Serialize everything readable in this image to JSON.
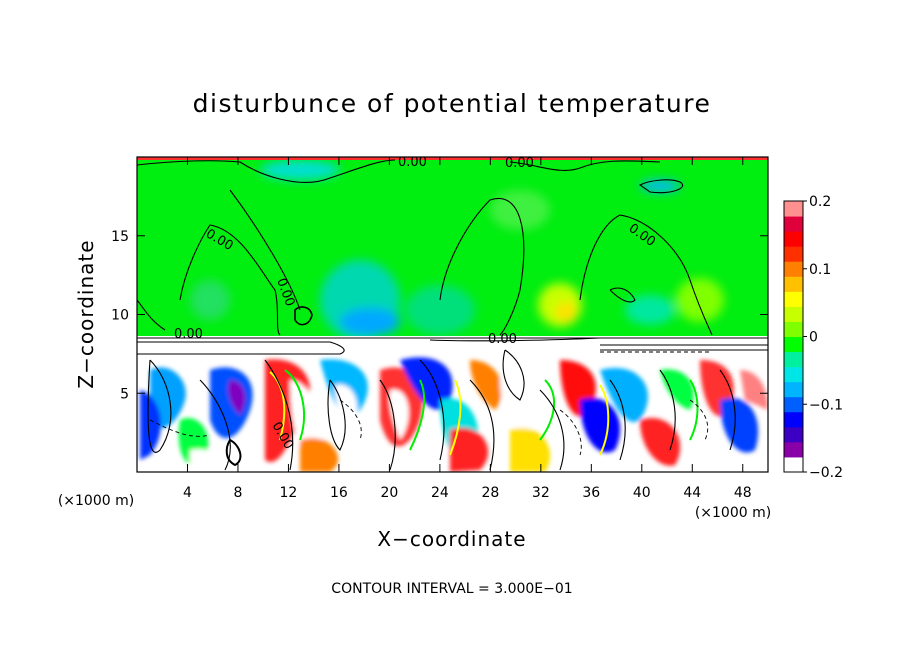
{
  "chart_data": {
    "type": "heatmap",
    "title": "disturbunce of potential temperature",
    "xlabel": "X−coordinate",
    "ylabel": "Z−coordinate",
    "x_unit": "(×1000 m)",
    "z_unit": "(×1000 m)",
    "xlim": [
      0,
      50
    ],
    "ylim": [
      0,
      20
    ],
    "x_ticks": [
      4,
      8,
      12,
      16,
      20,
      24,
      28,
      32,
      36,
      40,
      44,
      48
    ],
    "y_ticks": [
      5,
      10,
      15
    ],
    "colorbar": {
      "range": [
        -0.2,
        0.2
      ],
      "tick_values": [
        0.2,
        0.1,
        0,
        -0.1,
        -0.2
      ],
      "tick_labels": [
        "0.2",
        "0.1",
        "0",
        "−0.1",
        "−0.2"
      ],
      "colors": [
        "#ffffff",
        "#8a00a8",
        "#3b00c4",
        "#0000ff",
        "#0060ff",
        "#00b4ff",
        "#00e6e6",
        "#00f0a0",
        "#00ff00",
        "#80ff00",
        "#c8ff00",
        "#ffff00",
        "#ffc000",
        "#ff8000",
        "#ff3000",
        "#ff0000",
        "#e0003c",
        "#ff9090"
      ]
    },
    "contour_labels": [
      "0.00",
      "0.00",
      "0.00",
      "0.00",
      "0.00",
      "0.00",
      "0.00",
      "0.00"
    ],
    "contour_interval": "CONTOUR INTERVAL = 3.000E−01",
    "grid": false,
    "legend": "none"
  }
}
